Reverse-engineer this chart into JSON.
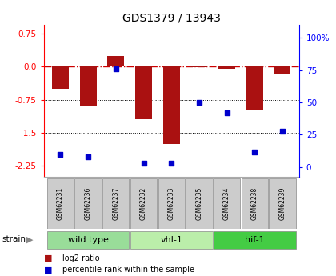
{
  "title": "GDS1379 / 13943",
  "samples": [
    "GSM62231",
    "GSM62236",
    "GSM62237",
    "GSM62232",
    "GSM62233",
    "GSM62235",
    "GSM62234",
    "GSM62238",
    "GSM62239"
  ],
  "log2_ratio": [
    -0.5,
    -0.9,
    0.25,
    -1.2,
    -1.75,
    -0.02,
    -0.05,
    -1.0,
    -0.15
  ],
  "percentile": [
    10,
    8,
    76,
    3,
    3,
    50,
    42,
    12,
    28
  ],
  "groups": [
    {
      "label": "wild type",
      "start": 0,
      "end": 3,
      "color": "#99dd99"
    },
    {
      "label": "vhl-1",
      "start": 3,
      "end": 6,
      "color": "#bbeeaa"
    },
    {
      "label": "hif-1",
      "start": 6,
      "end": 9,
      "color": "#44cc44"
    }
  ],
  "bar_color": "#aa1111",
  "dot_color": "#0000cc",
  "ylim_left": [
    -2.5,
    0.95
  ],
  "ylim_right": [
    -7.35,
    110
  ],
  "yticks_left": [
    0.75,
    0.0,
    -0.75,
    -1.5,
    -2.25
  ],
  "yticks_right": [
    0,
    25,
    50,
    75,
    100
  ],
  "legend_labels": [
    "log2 ratio",
    "percentile rank within the sample"
  ],
  "legend_colors": [
    "#aa1111",
    "#0000cc"
  ],
  "background_color": "#ffffff"
}
